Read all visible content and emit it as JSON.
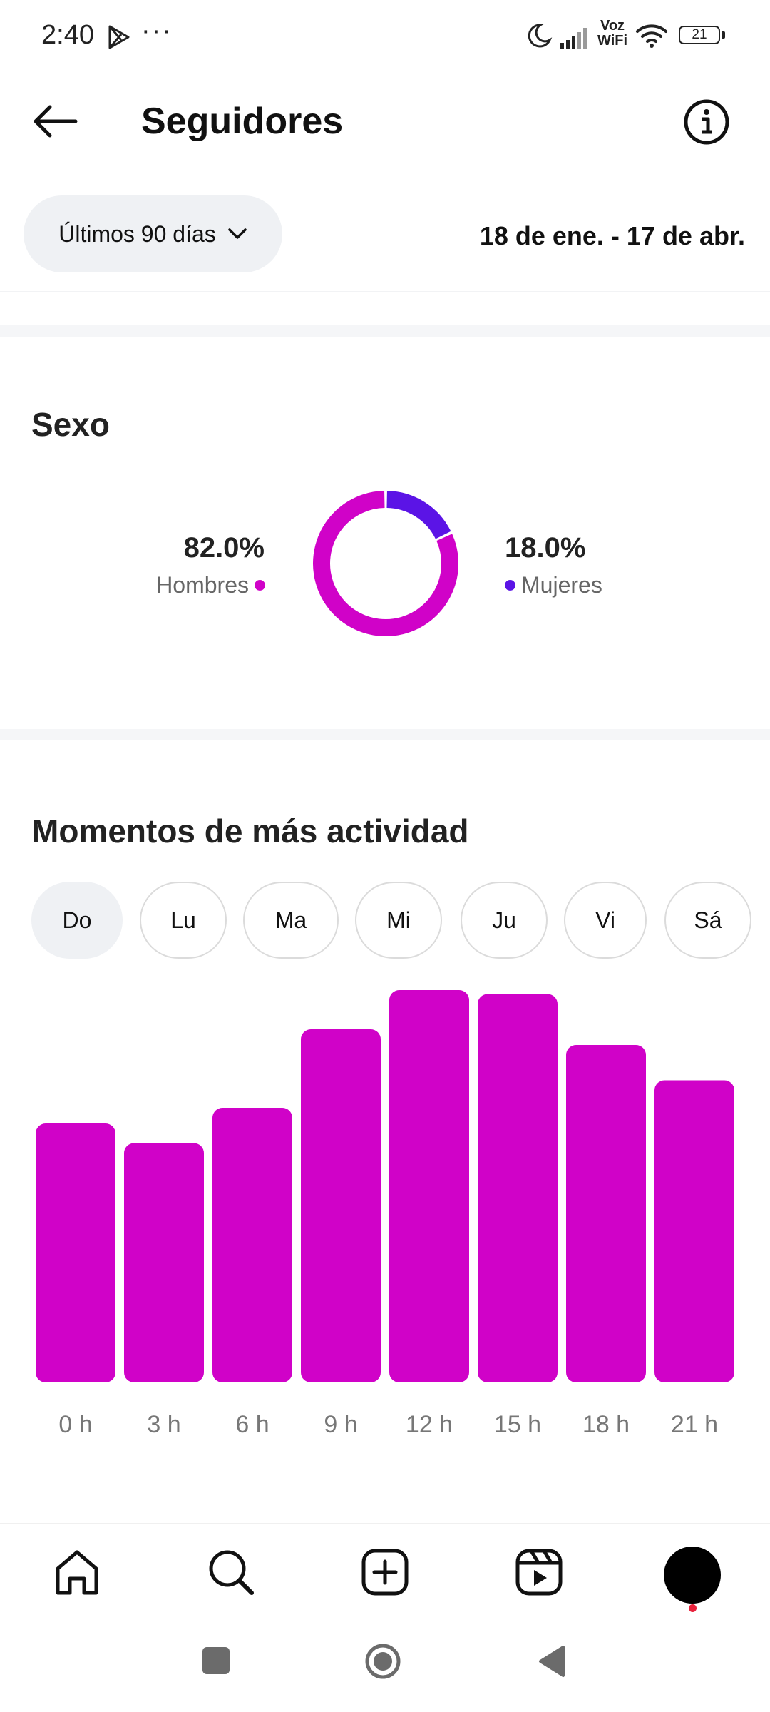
{
  "status_bar": {
    "time": "2:40",
    "more": "···",
    "vowifi_top": "Voz",
    "vowifi_bottom": "WiFi",
    "battery": "21",
    "icons": [
      "play-store-icon",
      "moon-icon",
      "signal-icon",
      "wifi-icon",
      "battery-icon"
    ]
  },
  "header": {
    "title": "Seguidores",
    "icons": [
      "back-arrow-icon",
      "info-icon"
    ]
  },
  "period": {
    "selected": "Últimos 90 días",
    "range": "18 de ene. - 17 de abr."
  },
  "gender": {
    "title": "Sexo",
    "men": {
      "label": "Hombres",
      "value": "82.0%",
      "percent": 82.0,
      "color": "#d002c8"
    },
    "women": {
      "label": "Mujeres",
      "value": "18.0%",
      "percent": 18.0,
      "color": "#5b14e6"
    }
  },
  "activity": {
    "title": "Momentos de más actividad",
    "days": [
      "Do",
      "Lu",
      "Ma",
      "Mi",
      "Ju",
      "Vi",
      "Sá"
    ],
    "selected_day": "Do"
  },
  "chart_data": {
    "type": "bar",
    "categories": [
      "0 h",
      "3 h",
      "6 h",
      "9 h",
      "12 h",
      "15 h",
      "18 h",
      "21 h"
    ],
    "values": [
      66,
      61,
      70,
      90,
      100,
      99,
      86,
      77
    ],
    "ylim": [
      0,
      100
    ],
    "color": "#d002c8",
    "grid": false
  },
  "bottom_nav": {
    "items": [
      "home-icon",
      "search-icon",
      "create-icon",
      "reels-icon",
      "profile-avatar"
    ]
  },
  "system_nav": {
    "items": [
      "recent-apps-button",
      "home-button",
      "back-button"
    ]
  }
}
